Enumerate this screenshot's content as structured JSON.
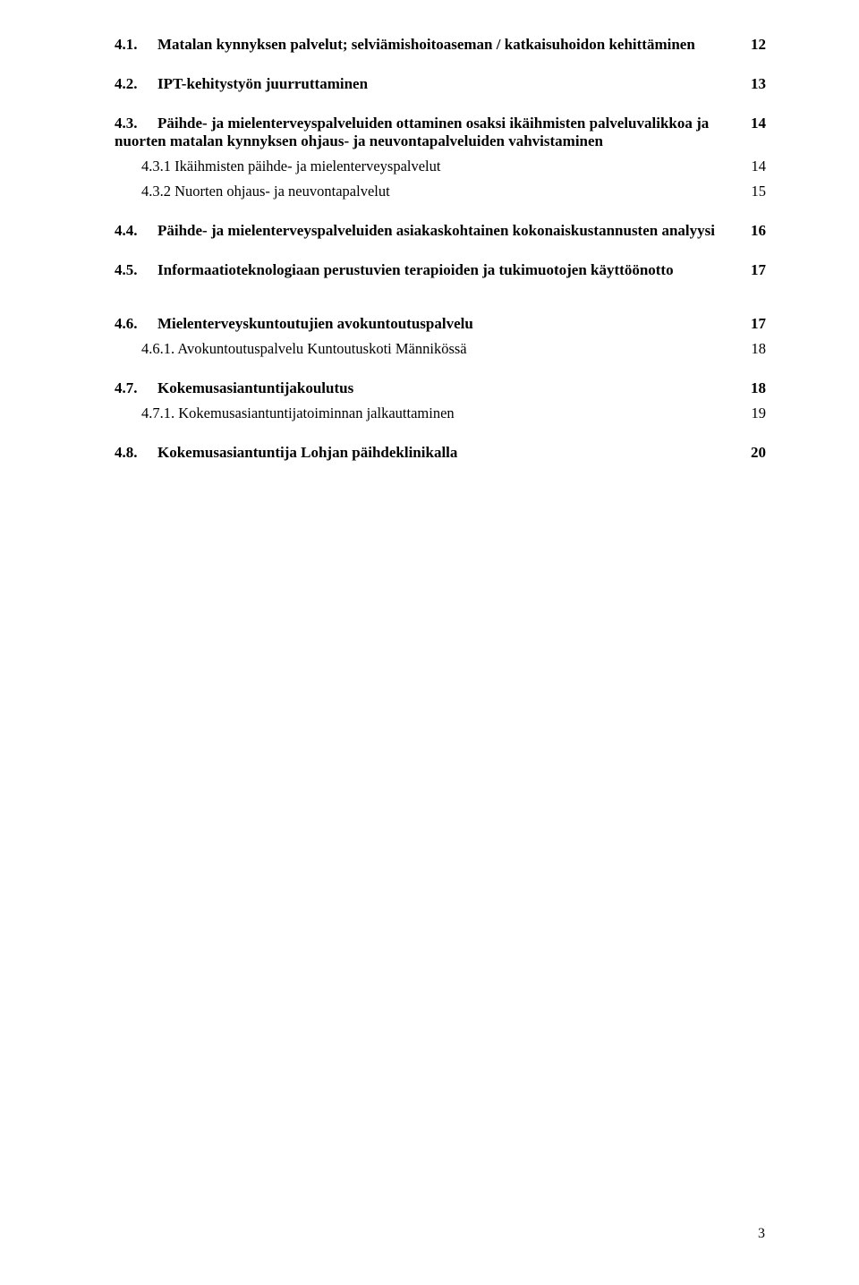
{
  "toc": {
    "entries": [
      {
        "num": "4.1.",
        "text": "Matalan kynnyksen palvelut; selviämishoitoaseman / katkaisuhoidon kehittäminen",
        "page": "12",
        "bold": true,
        "indent": 0,
        "gap": "med"
      },
      {
        "num": "4.2.",
        "text": "IPT-kehitystyön juurruttaminen",
        "page": "13",
        "bold": true,
        "indent": 0,
        "gap": "med"
      },
      {
        "num": "4.3.",
        "text": "Päihde- ja mielenterveyspalveluiden ottaminen osaksi ikäihmisten palveluvalikkoa ja nuorten matalan kynnyksen ohjaus- ja neuvontapalveluiden vahvistaminen",
        "page": "14",
        "bold": true,
        "indent": 0,
        "gap": "small",
        "wrap": true
      },
      {
        "num": "",
        "text": "4.3.1 Ikäihmisten päihde- ja mielenterveyspalvelut",
        "page": "14",
        "bold": false,
        "indent": 1,
        "gap": "small"
      },
      {
        "num": "",
        "text": "4.3.2 Nuorten ohjaus- ja neuvontapalvelut",
        "page": "15",
        "bold": false,
        "indent": 1,
        "gap": "med"
      },
      {
        "num": "4.4.",
        "text": "Päihde- ja mielenterveyspalveluiden asiakaskohtainen kokonaiskustannusten analyysi",
        "page": "16",
        "bold": true,
        "indent": 0,
        "gap": "med"
      },
      {
        "num": "4.5.",
        "text": "Informaatioteknologiaan perustuvien terapioiden ja tukimuotojen käyttöönotto",
        "page": "17",
        "bold": true,
        "indent": 0,
        "gap": "large"
      },
      {
        "num": "4.6.",
        "text": "Mielenterveyskuntoutujien avokuntoutuspalvelu",
        "page": "17",
        "bold": true,
        "indent": 0,
        "gap": "small"
      },
      {
        "num": "",
        "text": "4.6.1. Avokuntoutuspalvelu Kuntoutuskoti Männikössä",
        "page": "18",
        "bold": false,
        "indent": 1,
        "gap": "med"
      },
      {
        "num": "4.7.",
        "text": "Kokemusasiantuntijakoulutus",
        "page": "18",
        "bold": true,
        "indent": 0,
        "gap": "small"
      },
      {
        "num": "",
        "text": "4.7.1. Kokemusasiantuntijatoiminnan jalkauttaminen",
        "page": "19",
        "bold": false,
        "indent": 1,
        "gap": "med"
      },
      {
        "num": "4.8.",
        "text": "Kokemusasiantuntija Lohjan päihdeklinikalla",
        "page": "20",
        "bold": true,
        "indent": 0,
        "gap": "small"
      }
    ]
  },
  "pageNumber": "3",
  "colors": {
    "background": "#ffffff",
    "text": "#000000"
  },
  "typography": {
    "font_family": "Times New Roman",
    "bold_size_pt": 13,
    "normal_size_pt": 12.5
  }
}
